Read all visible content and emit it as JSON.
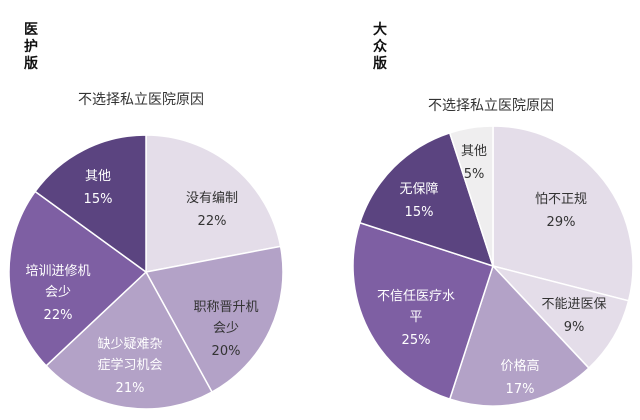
{
  "colors": {
    "ring_1": "#e4dde9",
    "ring_2": "#b3a2c7",
    "ring_3": "#7e5fa3",
    "ring_4": "#5b4480",
    "ring_light": "#efeeef",
    "dark_text": "#333333",
    "light_text": "#ffffff"
  },
  "chart_data": [
    {
      "type": "pie",
      "edition_label": "医\n护\n版",
      "title": "不选择私立医院原因",
      "slices": [
        {
          "label": "没有编制",
          "value": 22,
          "value_label": "22%"
        },
        {
          "label": "职称晋升机\n会少",
          "value": 20,
          "value_label": "20%"
        },
        {
          "label": "缺少疑难杂\n症学习机会",
          "value": 21,
          "value_label": "21%"
        },
        {
          "label": "培训进修机\n会少",
          "value": 22,
          "value_label": "22%"
        },
        {
          "label": "其他",
          "value": 15,
          "value_label": "15%"
        }
      ],
      "start": "12 o'clock",
      "direction": "clockwise"
    },
    {
      "type": "pie",
      "edition_label": "大\n众\n版",
      "title": "不选择私立医院原因",
      "slices": [
        {
          "label": "怕不正规",
          "value": 29,
          "value_label": "29%"
        },
        {
          "label": "不能进医保",
          "value": 9,
          "value_label": "9%"
        },
        {
          "label": "价格高",
          "value": 17,
          "value_label": "17%"
        },
        {
          "label": "不信任医疗水\n平",
          "value": 25,
          "value_label": "25%"
        },
        {
          "label": "无保障",
          "value": 15,
          "value_label": "15%"
        },
        {
          "label": "其他",
          "value": 5,
          "value_label": "5%"
        }
      ],
      "start": "12 o'clock",
      "direction": "clockwise"
    }
  ]
}
